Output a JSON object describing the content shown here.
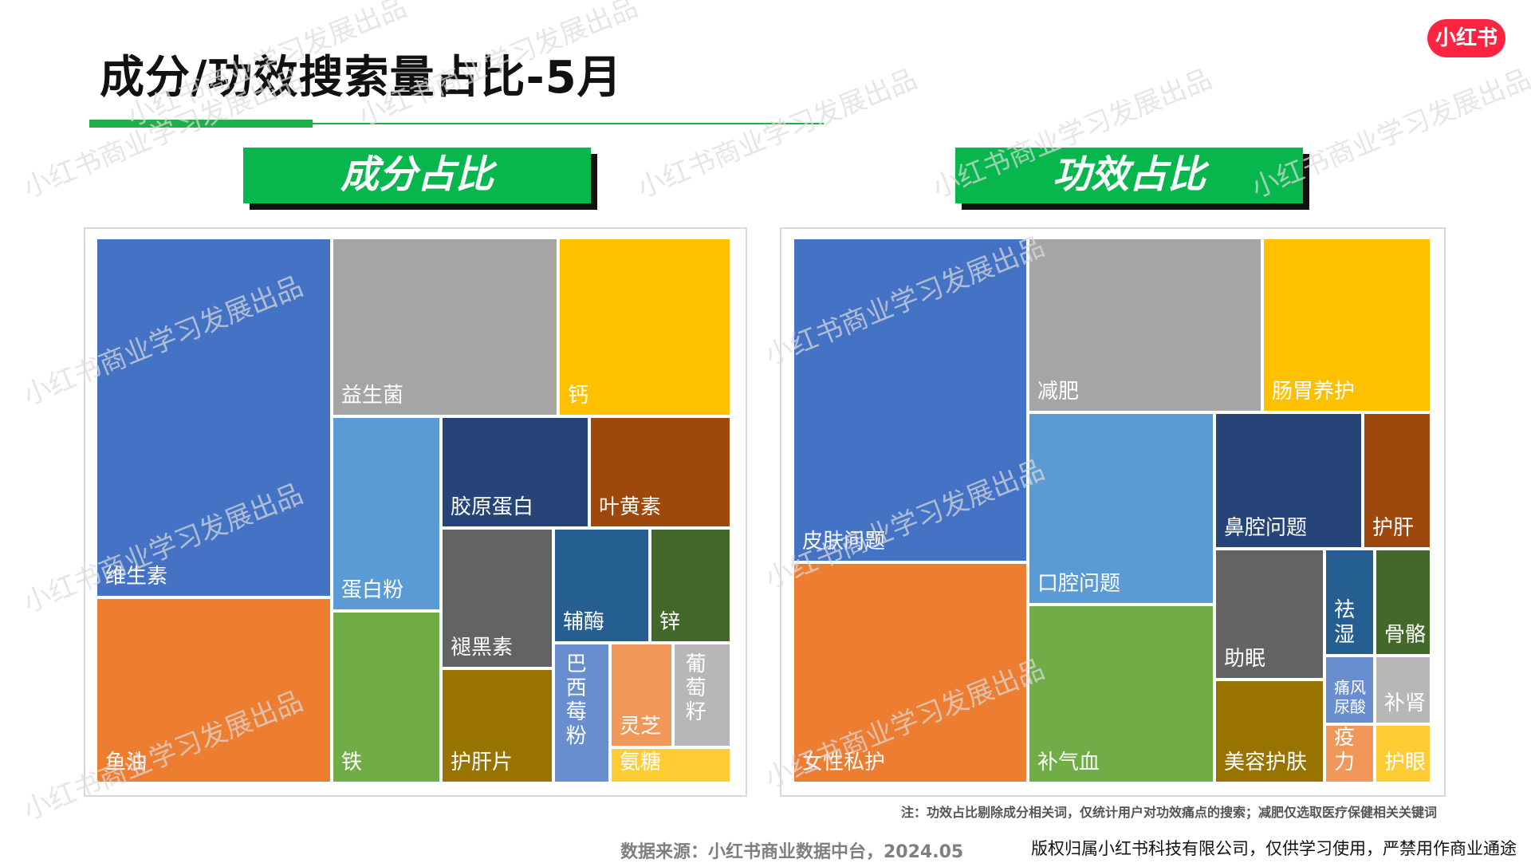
{
  "title": "成分/功效搜索量占比-5月",
  "logo_text": "小红书",
  "watermark": "小红书商业学习发展出品",
  "footer": {
    "note": "注：功效占比剔除成分相关词，仅统计用户对功效痛点的搜索；减肥仅选取医疗保健相关关键词",
    "source": "数据来源：小红书商业数据中台，2024.05",
    "copyright": "版权归属小红书科技有限公司，仅供学习使用，严禁用作商业通途"
  },
  "colors": {
    "blue": "#4472c4",
    "orange": "#ed7d31",
    "gray": "#a5a5a5",
    "gold": "#ffc000",
    "lightblue": "#5b9bd5",
    "green": "#70ad47",
    "navy": "#264478",
    "rust": "#9e480e",
    "darkgray": "#636363",
    "olive": "#997300",
    "steel": "#255e91",
    "darkgreen": "#43682b",
    "periwinkle": "#698ed0",
    "peach": "#f1975a",
    "silver": "#b7b7b7",
    "yellow": "#ffcd33",
    "accent_green": "#08b64e"
  },
  "chart_data": [
    {
      "type": "treemap",
      "title": "成分占比",
      "items": [
        {
          "label": "维生素",
          "color": "blue"
        },
        {
          "label": "鱼油",
          "color": "orange"
        },
        {
          "label": "益生菌",
          "color": "gray"
        },
        {
          "label": "钙",
          "color": "gold"
        },
        {
          "label": "蛋白粉",
          "color": "lightblue"
        },
        {
          "label": "铁",
          "color": "green"
        },
        {
          "label": "胶原蛋白",
          "color": "navy"
        },
        {
          "label": "叶黄素",
          "color": "rust"
        },
        {
          "label": "褪黑素",
          "color": "darkgray"
        },
        {
          "label": "护肝片",
          "color": "olive"
        },
        {
          "label": "辅酶",
          "color": "steel"
        },
        {
          "label": "锌",
          "color": "darkgreen"
        },
        {
          "label": "巴西莓粉",
          "color": "periwinkle"
        },
        {
          "label": "灵芝",
          "color": "peach"
        },
        {
          "label": "葡萄籽",
          "color": "silver"
        },
        {
          "label": "氨糖",
          "color": "yellow"
        }
      ]
    },
    {
      "type": "treemap",
      "title": "功效占比",
      "items": [
        {
          "label": "皮肤问题",
          "color": "blue"
        },
        {
          "label": "女性私护",
          "color": "orange"
        },
        {
          "label": "减肥",
          "color": "gray"
        },
        {
          "label": "肠胃养护",
          "color": "gold"
        },
        {
          "label": "口腔问题",
          "color": "lightblue"
        },
        {
          "label": "补气血",
          "color": "green"
        },
        {
          "label": "鼻腔问题",
          "color": "navy"
        },
        {
          "label": "护肝",
          "color": "rust"
        },
        {
          "label": "助眠",
          "color": "darkgray"
        },
        {
          "label": "美容护肤",
          "color": "olive"
        },
        {
          "label": "祛湿",
          "color": "steel"
        },
        {
          "label": "骨骼",
          "color": "darkgreen"
        },
        {
          "label": "痛风尿酸",
          "color": "periwinkle"
        },
        {
          "label": "补肾",
          "color": "silver"
        },
        {
          "label": "免疫力",
          "color": "peach"
        },
        {
          "label": "护眼",
          "color": "yellow"
        }
      ]
    }
  ]
}
